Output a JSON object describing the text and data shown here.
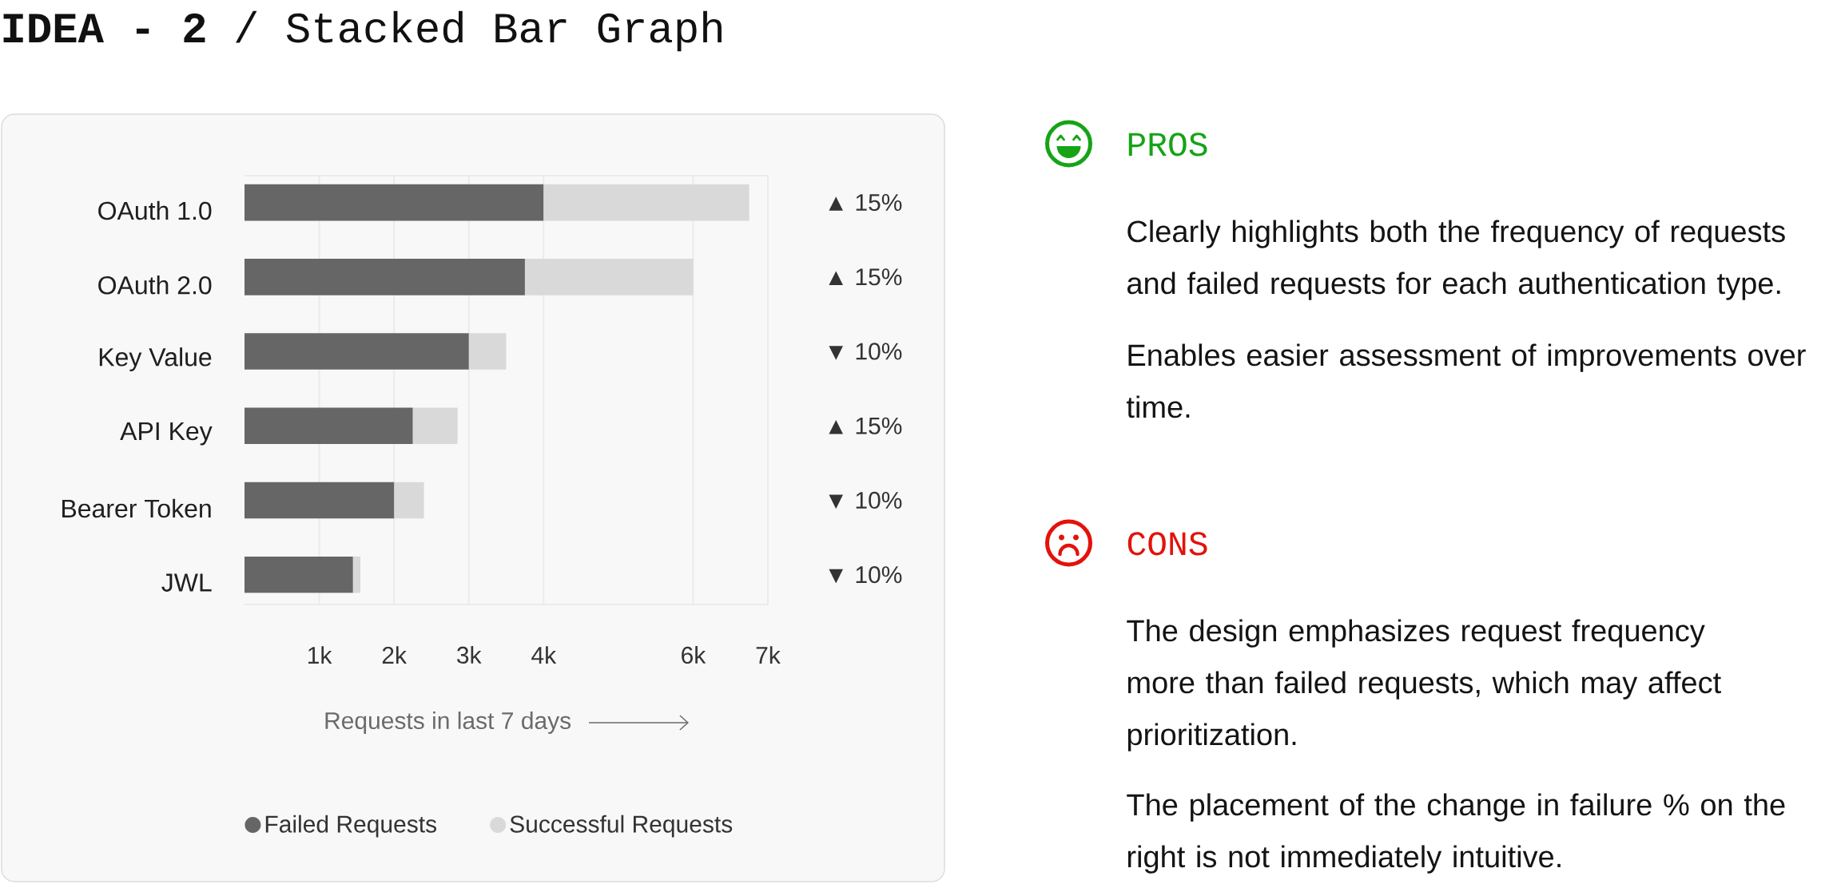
{
  "chart_data": {
    "type": "bar",
    "orientation": "horizontal",
    "stacked": true,
    "title": "**IDEA - 2** / Stacked Bar Graph",
    "xlabel": "Requests in last 7 days",
    "categories": [
      "OAuth 1.0",
      "OAuth 2.0",
      "Key Value",
      "API Key",
      "Bearer Token",
      "JWL"
    ],
    "series": [
      {
        "name": "Failed Requests",
        "color": "#666666",
        "values": [
          4000,
          3750,
          3000,
          2250,
          2000,
          1450
        ]
      },
      {
        "name": "Successful Requests",
        "color": "#d9d9d9",
        "values": [
          2750,
          2250,
          500,
          600,
          400,
          100
        ]
      }
    ],
    "xlim": [
      0,
      7000
    ],
    "xticks": [
      {
        "value": 1000,
        "label": "1k"
      },
      {
        "value": 2000,
        "label": "2k"
      },
      {
        "value": 3000,
        "label": "3k"
      },
      {
        "value": 4000,
        "label": "4k"
      },
      {
        "value": 6000,
        "label": "6k"
      },
      {
        "value": 7000,
        "label": "7k"
      }
    ],
    "grid": "x",
    "legend": "bottom",
    "annotations": [
      "▲ 15%",
      "▲ 15%",
      "▼ 10%",
      "▲ 15%",
      "▼ 10%",
      "▼ 10%",
      "PROS",
      "Clearly highlights both the frequency of requests and failed requests for each authentication type.",
      "Enables easier assessment of improvements over time.",
      "CONS",
      "The design emphasizes request frequency more than failed requests, which may affect prioritization.",
      "The placement of the change in failure % on the right is not immediately intuitive."
    ]
  }
}
